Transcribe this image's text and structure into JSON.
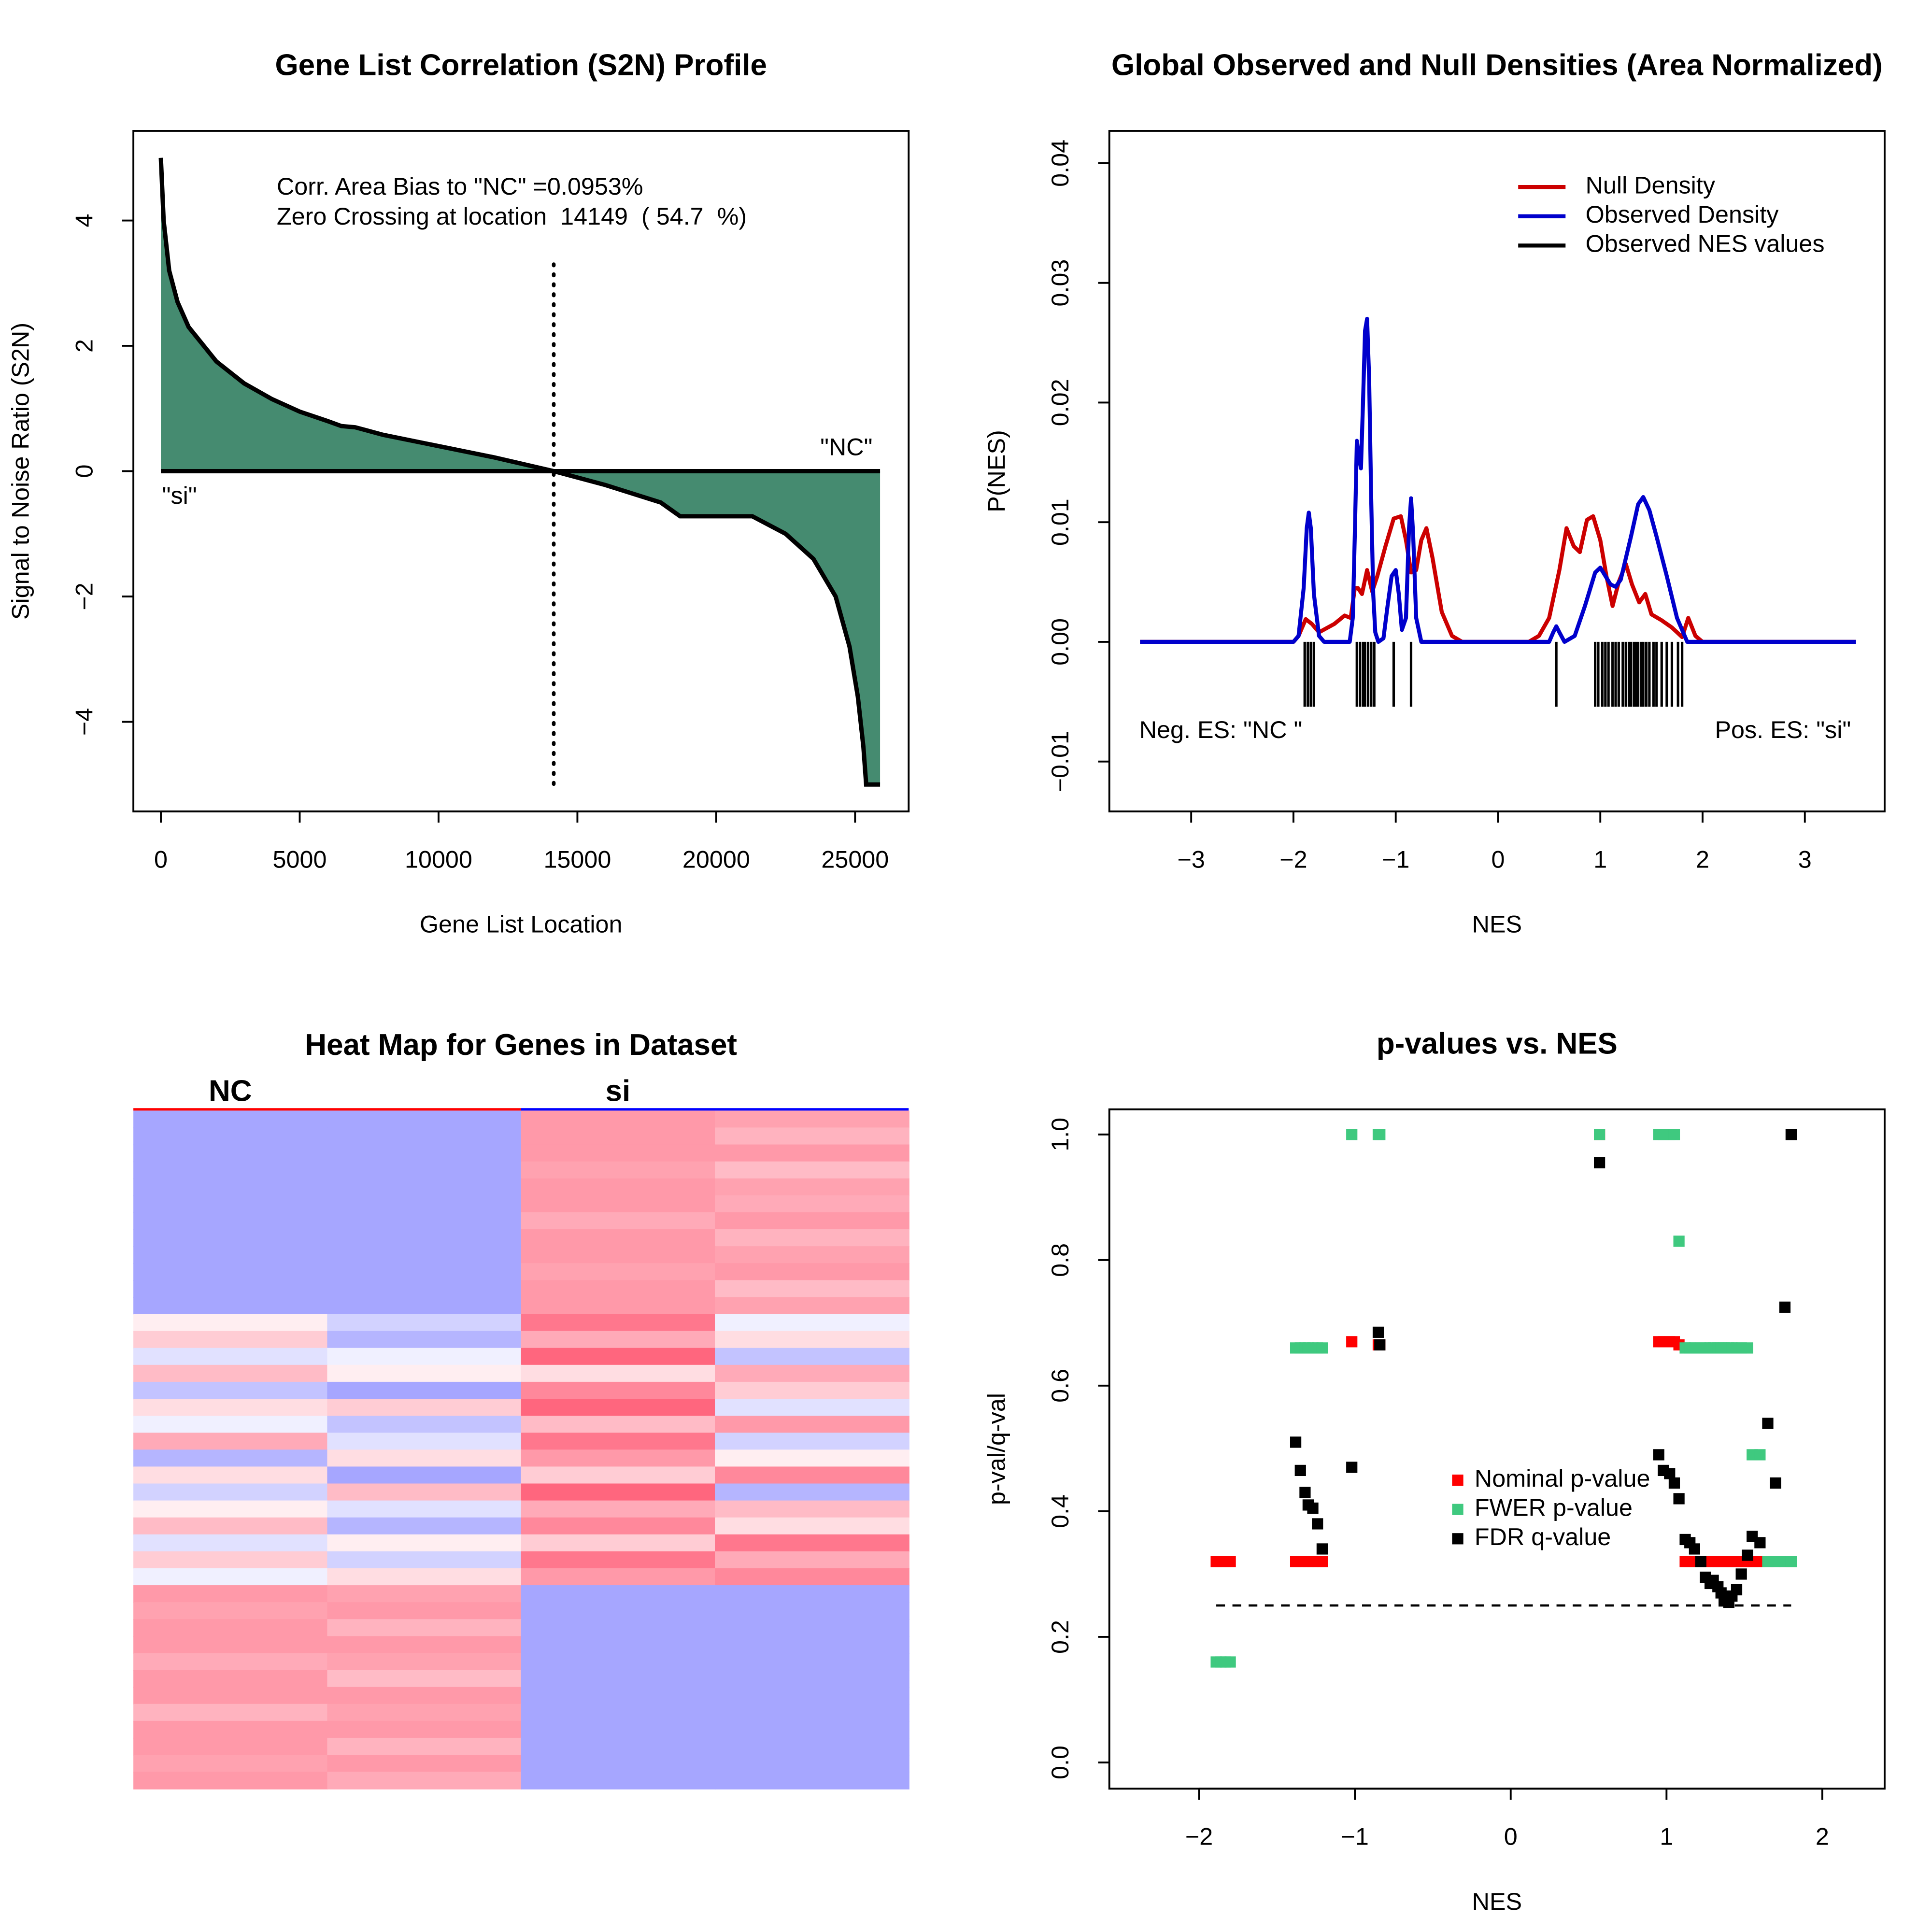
{
  "chart_data": [
    {
      "type": "area",
      "title": "Gene List Correlation (S2N) Profile",
      "x_label": "Gene List Location",
      "y_label": "Signal to Noise Ratio (S2N)",
      "x": [
        0,
        100,
        300,
        600,
        1000,
        2000,
        3000,
        4000,
        5000,
        6000,
        6500,
        7000,
        8000,
        10000,
        12000,
        14149,
        16000,
        18000,
        18700,
        21300,
        22500,
        23500,
        24300,
        24800,
        25100,
        25300,
        25400,
        25900
      ],
      "values": [
        5,
        4,
        3.2,
        2.7,
        2.3,
        1.75,
        1.4,
        1.15,
        0.95,
        0.8,
        0.72,
        0.7,
        0.58,
        0.4,
        0.22,
        0,
        -0.22,
        -0.5,
        -0.72,
        -0.72,
        -1.0,
        -1.4,
        -2.0,
        -2.8,
        -3.6,
        -4.4,
        -5.0,
        -5.0
      ],
      "color": "#458b70",
      "xlim": [
        -990,
        26930
      ],
      "ylim": [
        -5.43,
        5.43
      ],
      "xticks": [
        0,
        5000,
        10000,
        15000,
        20000,
        25000
      ],
      "yticks": [
        {
          "value": -4,
          "label": "−4"
        },
        {
          "value": -2,
          "label": "−2"
        },
        0,
        2,
        4
      ],
      "zero_crossing": 14149,
      "annotations": [
        "Corr. Area Bias to \"NC\" =0.0953%",
        "Zero Crossing at location  14149  ( 54.7  %)"
      ],
      "right_label": "\"NC\"",
      "left_label": "\"si\""
    },
    {
      "type": "density",
      "title": "Global Observed and Null Densities (Area Normalized)",
      "x_label": "NES",
      "y_label": "P(NES)",
      "series": [
        {
          "name": "Null Density",
          "color": "#cc0000",
          "x": [
            -3.5,
            -2.0,
            -1.95,
            -1.88,
            -1.82,
            -1.75,
            -1.6,
            -1.5,
            -1.44,
            -1.4,
            -1.37,
            -1.33,
            -1.28,
            -1.23,
            -1.18,
            -1.1,
            -1.02,
            -0.95,
            -0.9,
            -0.85,
            -0.8,
            -0.75,
            -0.7,
            -0.64,
            -0.55,
            -0.45,
            -0.35,
            0.3,
            0.4,
            0.5,
            0.6,
            0.67,
            0.74,
            0.8,
            0.87,
            0.93,
            1.0,
            1.06,
            1.12,
            1.18,
            1.25,
            1.31,
            1.38,
            1.44,
            1.5,
            1.6,
            1.7,
            1.8,
            1.86,
            1.93,
            2.0,
            3.5
          ],
          "values": [
            0,
            0,
            0.0005,
            0.0019,
            0.0015,
            0.0008,
            0.0015,
            0.0022,
            0.002,
            0.0045,
            0.0045,
            0.004,
            0.006,
            0.0042,
            0.0055,
            0.008,
            0.0103,
            0.0105,
            0.0085,
            0.0058,
            0.006,
            0.0085,
            0.0095,
            0.007,
            0.0025,
            0.0005,
            0,
            0,
            0.0005,
            0.002,
            0.006,
            0.0095,
            0.008,
            0.0075,
            0.0102,
            0.0105,
            0.0085,
            0.0055,
            0.003,
            0.005,
            0.0065,
            0.0048,
            0.0033,
            0.004,
            0.0023,
            0.0018,
            0.0012,
            0.0004,
            0.002,
            0.0005,
            0,
            0
          ]
        },
        {
          "name": "Observed Density",
          "color": "#0000cc",
          "x": [
            -3.5,
            -2.0,
            -1.95,
            -1.9,
            -1.87,
            -1.85,
            -1.83,
            -1.8,
            -1.75,
            -1.7,
            -1.45,
            -1.42,
            -1.4,
            -1.38,
            -1.36,
            -1.34,
            -1.32,
            -1.3,
            -1.28,
            -1.26,
            -1.24,
            -1.22,
            -1.2,
            -1.17,
            -1.12,
            -1.08,
            -1.04,
            -1.0,
            -0.97,
            -0.94,
            -0.9,
            -0.87,
            -0.85,
            -0.83,
            -0.8,
            -0.75,
            0.5,
            0.54,
            0.57,
            0.6,
            0.65,
            0.75,
            0.85,
            0.95,
            1.0,
            1.05,
            1.1,
            1.15,
            1.2,
            1.3,
            1.37,
            1.42,
            1.48,
            1.55,
            1.65,
            1.75,
            1.85,
            3.5
          ],
          "values": [
            0,
            0,
            0.0005,
            0.0045,
            0.0095,
            0.0108,
            0.0095,
            0.004,
            0.0005,
            0,
            0,
            0.002,
            0.009,
            0.0168,
            0.0155,
            0.0145,
            0.02,
            0.026,
            0.027,
            0.022,
            0.012,
            0.004,
            0.0008,
            0,
            0.0003,
            0.003,
            0.0055,
            0.006,
            0.004,
            0.001,
            0.002,
            0.0095,
            0.012,
            0.009,
            0.002,
            0,
            0,
            0.0008,
            0.0013,
            0.0008,
            0,
            0.0005,
            0.003,
            0.0058,
            0.0062,
            0.0055,
            0.0048,
            0.0046,
            0.0052,
            0.0088,
            0.0115,
            0.0121,
            0.011,
            0.0088,
            0.0055,
            0.002,
            0,
            0
          ]
        }
      ],
      "rug": {
        "name": "Observed NES values",
        "color": "#000000",
        "x": [
          -1.89,
          -1.86,
          -1.83,
          -1.8,
          -1.38,
          -1.35,
          -1.32,
          -1.3,
          -1.27,
          -1.24,
          -1.21,
          -1.02,
          -0.85,
          0.57,
          0.95,
          0.98,
          1.02,
          1.05,
          1.08,
          1.12,
          1.15,
          1.18,
          1.22,
          1.25,
          1.28,
          1.3,
          1.33,
          1.35,
          1.37,
          1.4,
          1.42,
          1.45,
          1.48,
          1.52,
          1.55,
          1.6,
          1.65,
          1.7,
          1.76,
          1.8
        ]
      },
      "xlim": [
        -3.8,
        3.78
      ],
      "ylim": [
        -0.01417,
        0.0427
      ],
      "xticks": [
        {
          "value": -3,
          "label": "−3"
        },
        {
          "value": -2,
          "label": "−2"
        },
        {
          "value": -1,
          "label": "−1"
        },
        0,
        1,
        2,
        3
      ],
      "yticks": [
        {
          "value": -0.01,
          "label": "−0.01"
        },
        {
          "value": 0,
          "label": "0.00"
        },
        0.01,
        0.02,
        0.03,
        0.04
      ],
      "legend": "topright",
      "neg_label": "Neg. ES: \"NC \"",
      "pos_label": "Pos. ES: \"si\""
    },
    {
      "type": "heatmap",
      "title": "Heat Map for Genes in Dataset",
      "groups": [
        {
          "name": "NC",
          "color": "#ff0000"
        },
        {
          "name": "si",
          "color": "#0000ff"
        }
      ],
      "low_color": "#6a6aff",
      "high_color": "#ff5570",
      "values": [
        [
          -0.6,
          -0.6,
          0.6,
          0.55
        ],
        [
          -0.6,
          -0.6,
          0.6,
          0.45
        ],
        [
          -0.6,
          -0.6,
          0.6,
          0.6
        ],
        [
          -0.6,
          -0.6,
          0.55,
          0.4
        ],
        [
          -0.6,
          -0.6,
          0.6,
          0.55
        ],
        [
          -0.6,
          -0.6,
          0.6,
          0.5
        ],
        [
          -0.6,
          -0.6,
          0.5,
          0.6
        ],
        [
          -0.6,
          -0.6,
          0.6,
          0.45
        ],
        [
          -0.6,
          -0.6,
          0.6,
          0.55
        ],
        [
          -0.6,
          -0.6,
          0.55,
          0.6
        ],
        [
          -0.6,
          -0.6,
          0.6,
          0.4
        ],
        [
          -0.6,
          -0.6,
          0.6,
          0.55
        ],
        [
          0.1,
          -0.3,
          0.8,
          -0.1
        ],
        [
          0.3,
          -0.5,
          0.5,
          0.2
        ],
        [
          -0.2,
          -0.1,
          0.9,
          -0.4
        ],
        [
          0.4,
          0.1,
          0.2,
          0.5
        ],
        [
          -0.4,
          -0.6,
          0.7,
          0.3
        ],
        [
          0.2,
          0.3,
          0.9,
          -0.2
        ],
        [
          -0.1,
          -0.4,
          0.4,
          0.6
        ],
        [
          0.5,
          -0.2,
          0.8,
          -0.3
        ],
        [
          -0.5,
          0.2,
          0.6,
          0.1
        ],
        [
          0.2,
          -0.6,
          0.3,
          0.7
        ],
        [
          -0.3,
          0.4,
          0.9,
          -0.5
        ],
        [
          0.1,
          -0.2,
          0.5,
          0.4
        ],
        [
          0.4,
          -0.5,
          0.7,
          0.2
        ],
        [
          -0.2,
          0.1,
          0.3,
          0.8
        ],
        [
          0.3,
          -0.3,
          0.8,
          0.5
        ],
        [
          -0.1,
          0.2,
          0.6,
          0.7
        ],
        [
          0.6,
          0.55,
          -0.6,
          -0.6
        ],
        [
          0.55,
          0.6,
          -0.6,
          -0.6
        ],
        [
          0.6,
          0.45,
          -0.6,
          -0.6
        ],
        [
          0.6,
          0.6,
          -0.6,
          -0.6
        ],
        [
          0.5,
          0.55,
          -0.6,
          -0.6
        ],
        [
          0.6,
          0.4,
          -0.6,
          -0.6
        ],
        [
          0.6,
          0.6,
          -0.6,
          -0.6
        ],
        [
          0.45,
          0.55,
          -0.6,
          -0.6
        ],
        [
          0.6,
          0.6,
          -0.6,
          -0.6
        ],
        [
          0.6,
          0.45,
          -0.6,
          -0.6
        ],
        [
          0.55,
          0.6,
          -0.6,
          -0.6
        ],
        [
          0.6,
          0.5,
          -0.6,
          -0.6
        ]
      ]
    },
    {
      "type": "scatter",
      "title": "p-values vs. NES",
      "x_label": "NES",
      "y_label": "p-val/q-val",
      "x": [
        -1.89,
        -1.86,
        -1.83,
        -1.8,
        -1.38,
        -1.35,
        -1.32,
        -1.3,
        -1.27,
        -1.24,
        -1.21,
        -1.02,
        -0.85,
        -0.84,
        0.57,
        0.95,
        0.98,
        1.02,
        1.05,
        1.08,
        1.12,
        1.15,
        1.18,
        1.22,
        1.25,
        1.28,
        1.3,
        1.33,
        1.35,
        1.37,
        1.4,
        1.42,
        1.45,
        1.48,
        1.52,
        1.55,
        1.6,
        1.65,
        1.7,
        1.76,
        1.8
      ],
      "series": [
        {
          "name": "Nominal p-value",
          "color": "#ff0000",
          "values": [
            0.32,
            0.32,
            0.32,
            0.32,
            0.32,
            0.32,
            0.32,
            0.32,
            0.32,
            0.32,
            0.32,
            0.67,
            0.665,
            0.665,
            1.0,
            0.67,
            0.67,
            0.67,
            0.67,
            0.665,
            0.32,
            0.32,
            0.32,
            0.32,
            0.32,
            0.32,
            0.32,
            0.32,
            0.32,
            0.32,
            0.32,
            0.32,
            0.32,
            0.32,
            0.32,
            0.32,
            0.32,
            0.32,
            0.32,
            0.32,
            0.32
          ]
        },
        {
          "name": "FWER p-value",
          "color": "#3fc97f",
          "values": [
            0.16,
            0.16,
            0.16,
            0.16,
            0.66,
            0.66,
            0.66,
            0.66,
            0.66,
            0.66,
            0.66,
            1.0,
            1.0,
            1.0,
            1.0,
            1.0,
            1.0,
            1.0,
            1.0,
            0.83,
            0.66,
            0.66,
            0.66,
            0.66,
            0.66,
            0.66,
            0.66,
            0.66,
            0.66,
            0.66,
            0.66,
            0.66,
            0.66,
            0.66,
            0.66,
            0.49,
            0.49,
            0.32,
            0.32,
            0.32,
            0.32
          ]
        },
        {
          "name": "FDR q-value",
          "color": "#000000",
          "values": [
            null,
            null,
            null,
            null,
            0.51,
            0.465,
            0.43,
            0.41,
            0.405,
            0.38,
            0.34,
            0.47,
            0.685,
            0.665,
            0.955,
            0.49,
            0.465,
            0.46,
            0.445,
            0.42,
            0.355,
            0.35,
            0.34,
            0.32,
            0.295,
            0.285,
            0.29,
            0.28,
            0.27,
            0.26,
            0.255,
            0.265,
            0.275,
            0.3,
            0.33,
            0.36,
            0.35,
            0.54,
            0.445,
            0.725,
            1.0
          ]
        }
      ],
      "xlim": [
        -2.576,
        2.4
      ],
      "ylim": [
        -0.0417,
        1.04
      ],
      "xticks": [
        {
          "value": -2,
          "label": "−2"
        },
        {
          "value": -1,
          "label": "−1"
        },
        0,
        1,
        2
      ],
      "yticks": [
        {
          "value": 0,
          "label": "0.0"
        },
        0.2,
        0.4,
        0.6,
        0.8,
        {
          "value": 1,
          "label": "1.0"
        }
      ],
      "fdr_threshold": 0.25,
      "legend": "center"
    }
  ]
}
